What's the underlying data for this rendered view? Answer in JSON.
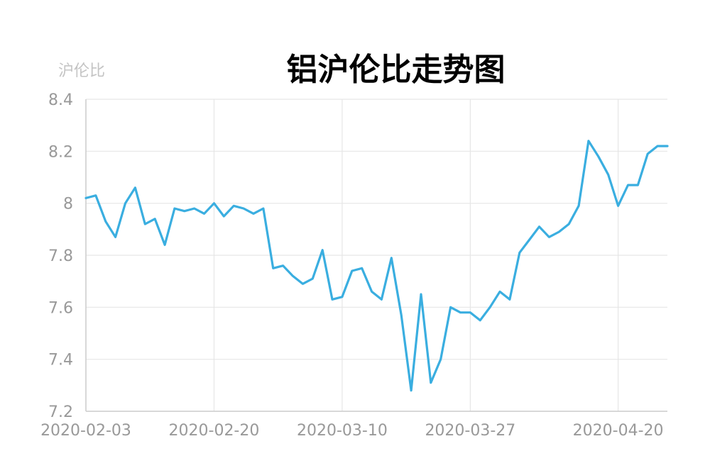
{
  "chart_data": {
    "type": "line",
    "title": "铝沪伦比走势图",
    "ylabel": "沪伦比",
    "xlabel": "",
    "ylim": [
      7.2,
      8.4
    ],
    "y_ticks": [
      7.2,
      7.4,
      7.6,
      7.8,
      8.0,
      8.2,
      8.4
    ],
    "y_tick_labels": [
      "7.2",
      "7.4",
      "7.6",
      "7.8",
      "8",
      "8.2",
      "8.4"
    ],
    "x_tick_labels": [
      "2020-02-03",
      "2020-02-20",
      "2020-03-10",
      "2020-03-27",
      "2020-04-20"
    ],
    "grid": true,
    "color": "#3aaee0",
    "x": [
      "2020-02-03",
      "2020-02-04",
      "2020-02-05",
      "2020-02-06",
      "2020-02-07",
      "2020-02-10",
      "2020-02-11",
      "2020-02-12",
      "2020-02-13",
      "2020-02-14",
      "2020-02-17",
      "2020-02-18",
      "2020-02-19",
      "2020-02-20",
      "2020-02-21",
      "2020-02-24",
      "2020-02-25",
      "2020-02-26",
      "2020-02-27",
      "2020-02-28",
      "2020-03-02",
      "2020-03-03",
      "2020-03-04",
      "2020-03-05",
      "2020-03-06",
      "2020-03-09",
      "2020-03-10",
      "2020-03-11",
      "2020-03-12",
      "2020-03-13",
      "2020-03-16",
      "2020-03-17",
      "2020-03-18",
      "2020-03-19",
      "2020-03-20",
      "2020-03-23",
      "2020-03-24",
      "2020-03-25",
      "2020-03-26",
      "2020-03-27",
      "2020-03-30",
      "2020-03-31",
      "2020-04-01",
      "2020-04-02",
      "2020-04-03",
      "2020-04-07",
      "2020-04-08",
      "2020-04-09",
      "2020-04-10",
      "2020-04-13",
      "2020-04-14",
      "2020-04-15",
      "2020-04-16",
      "2020-04-17",
      "2020-04-20",
      "2020-04-21",
      "2020-04-22",
      "2020-04-23",
      "2020-04-24",
      "2020-04-27"
    ],
    "values": [
      8.02,
      8.03,
      7.93,
      7.87,
      8.0,
      8.06,
      7.92,
      7.94,
      7.84,
      7.98,
      7.97,
      7.98,
      7.96,
      8.0,
      7.95,
      7.99,
      7.98,
      7.96,
      7.98,
      7.75,
      7.76,
      7.72,
      7.69,
      7.71,
      7.82,
      7.63,
      7.64,
      7.74,
      7.75,
      7.66,
      7.63,
      7.79,
      7.57,
      7.28,
      7.65,
      7.31,
      7.4,
      7.6,
      7.58,
      7.58,
      7.55,
      7.6,
      7.66,
      7.63,
      7.81,
      7.86,
      7.91,
      7.87,
      7.89,
      7.92,
      7.99,
      8.24,
      8.18,
      8.11,
      7.99,
      8.07,
      8.07,
      8.19,
      8.22,
      8.22
    ]
  }
}
